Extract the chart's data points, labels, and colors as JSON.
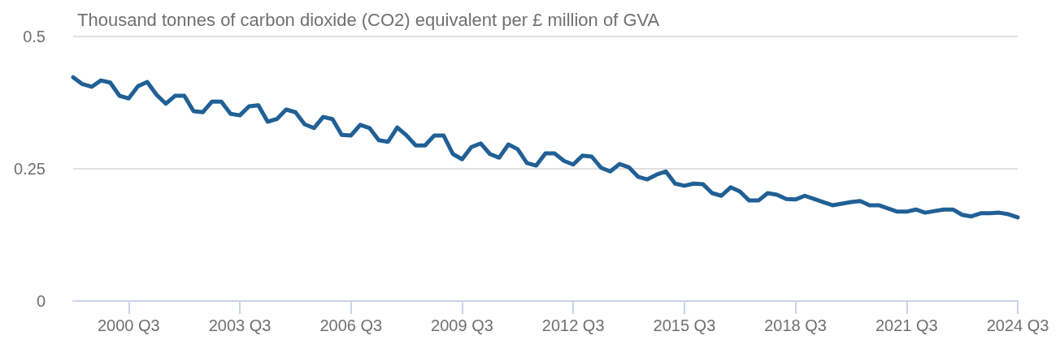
{
  "chart_data": {
    "type": "line",
    "title": "Thousand tonnes of carbon dioxide (CO2) equivalent per £ million of GVA",
    "categories": [
      null,
      null,
      null,
      null,
      null,
      null,
      "2000 Q3",
      null,
      null,
      null,
      null,
      null,
      null,
      null,
      null,
      null,
      null,
      null,
      "2003 Q3",
      null,
      null,
      null,
      null,
      null,
      null,
      null,
      null,
      null,
      null,
      null,
      "2006 Q3",
      null,
      null,
      null,
      null,
      null,
      null,
      null,
      null,
      null,
      null,
      null,
      "2009 Q3",
      null,
      null,
      null,
      null,
      null,
      null,
      null,
      null,
      null,
      null,
      null,
      "2012 Q3",
      null,
      null,
      null,
      null,
      null,
      null,
      null,
      null,
      null,
      null,
      null,
      "2015 Q3",
      null,
      null,
      null,
      null,
      null,
      null,
      null,
      null,
      null,
      null,
      null,
      "2018 Q3",
      null,
      null,
      null,
      null,
      null,
      null,
      null,
      null,
      null,
      null,
      null,
      "2021 Q3",
      null,
      null,
      null,
      null,
      null,
      null,
      null,
      null,
      null,
      null,
      null,
      "2024 Q3"
    ],
    "series": [
      {
        "color": "#206095",
        "values": [
          0.423,
          0.41,
          0.405,
          0.417,
          0.413,
          0.388,
          0.383,
          0.406,
          0.414,
          0.39,
          0.373,
          0.388,
          0.388,
          0.359,
          0.357,
          0.377,
          0.377,
          0.354,
          0.351,
          0.368,
          0.37,
          0.339,
          0.344,
          0.362,
          0.357,
          0.334,
          0.327,
          0.348,
          0.344,
          0.314,
          0.313,
          0.333,
          0.327,
          0.304,
          0.301,
          0.328,
          0.313,
          0.294,
          0.294,
          0.313,
          0.313,
          0.278,
          0.268,
          0.291,
          0.298,
          0.278,
          0.271,
          0.296,
          0.287,
          0.261,
          0.256,
          0.279,
          0.279,
          0.265,
          0.258,
          0.275,
          0.273,
          0.252,
          0.245,
          0.259,
          0.253,
          0.235,
          0.23,
          0.239,
          0.245,
          0.222,
          0.218,
          0.222,
          0.221,
          0.204,
          0.199,
          0.215,
          0.207,
          0.19,
          0.19,
          0.204,
          0.201,
          0.193,
          0.192,
          0.199,
          0.193,
          0.187,
          0.181,
          0.184,
          0.187,
          0.189,
          0.181,
          0.181,
          0.175,
          0.169,
          0.169,
          0.173,
          0.167,
          0.17,
          0.173,
          0.173,
          0.163,
          0.16,
          0.166,
          0.166,
          0.167,
          0.164,
          0.158
        ]
      }
    ],
    "ylim": [
      0,
      0.5
    ],
    "yticks": [
      0,
      0.25,
      0.5
    ],
    "grid": "y",
    "marker": "none",
    "line_style": "solid"
  }
}
